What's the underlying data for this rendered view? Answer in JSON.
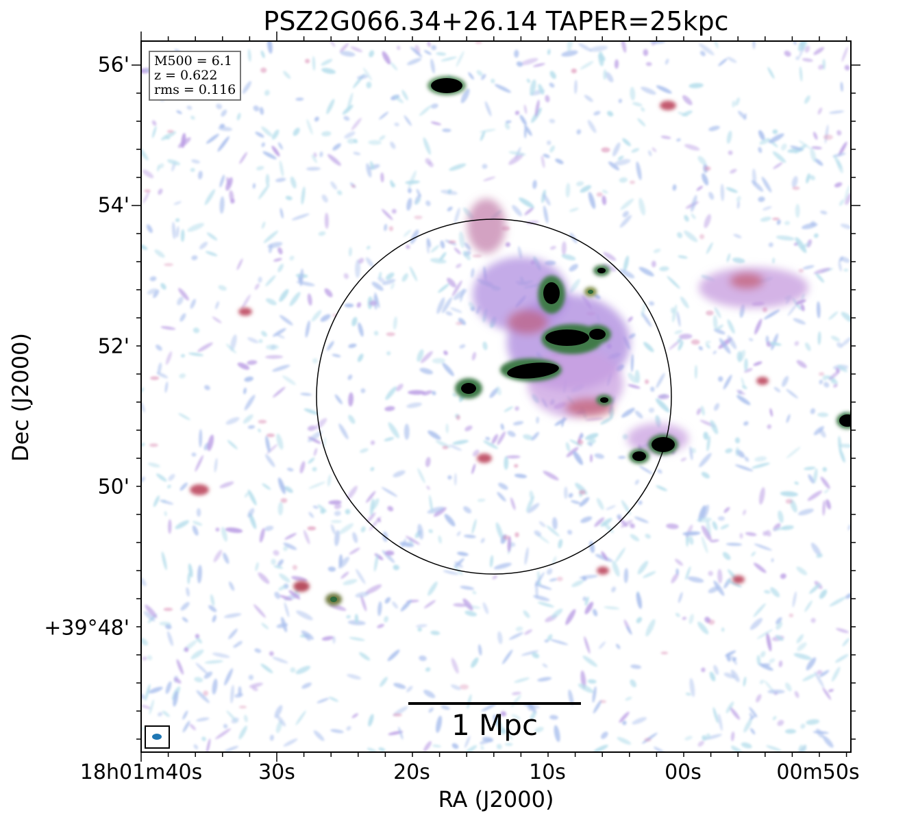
{
  "title": "PSZ2G066.34+26.14 TAPER=25kpc",
  "xlabel": "RA (J2000)",
  "ylabel": "Dec (J2000)",
  "x_ticks": [
    "18h01m40s",
    "30s",
    "20s",
    "10s",
    "00s",
    "00m50s"
  ],
  "y_ticks": [
    "56'",
    "54'",
    "52'",
    "50'",
    "+39°48'"
  ],
  "info": {
    "m500": "M500 = 6.1",
    "z": "z = 0.622",
    "rms": "rms = 0.116"
  },
  "scale_bar_label": "1 Mpc",
  "colors": {
    "background": "#ffffff",
    "noise_light": "#a8d8e8",
    "noise_blue": "#9bb4ea",
    "noise_purple": "#b08fe0",
    "emission_pink": "#d47aa8",
    "emission_red": "#c35a6e",
    "source_green": "#2f6b3c",
    "source_core": "#000000",
    "beam": "#1f77b4",
    "circle": "#000000"
  }
}
